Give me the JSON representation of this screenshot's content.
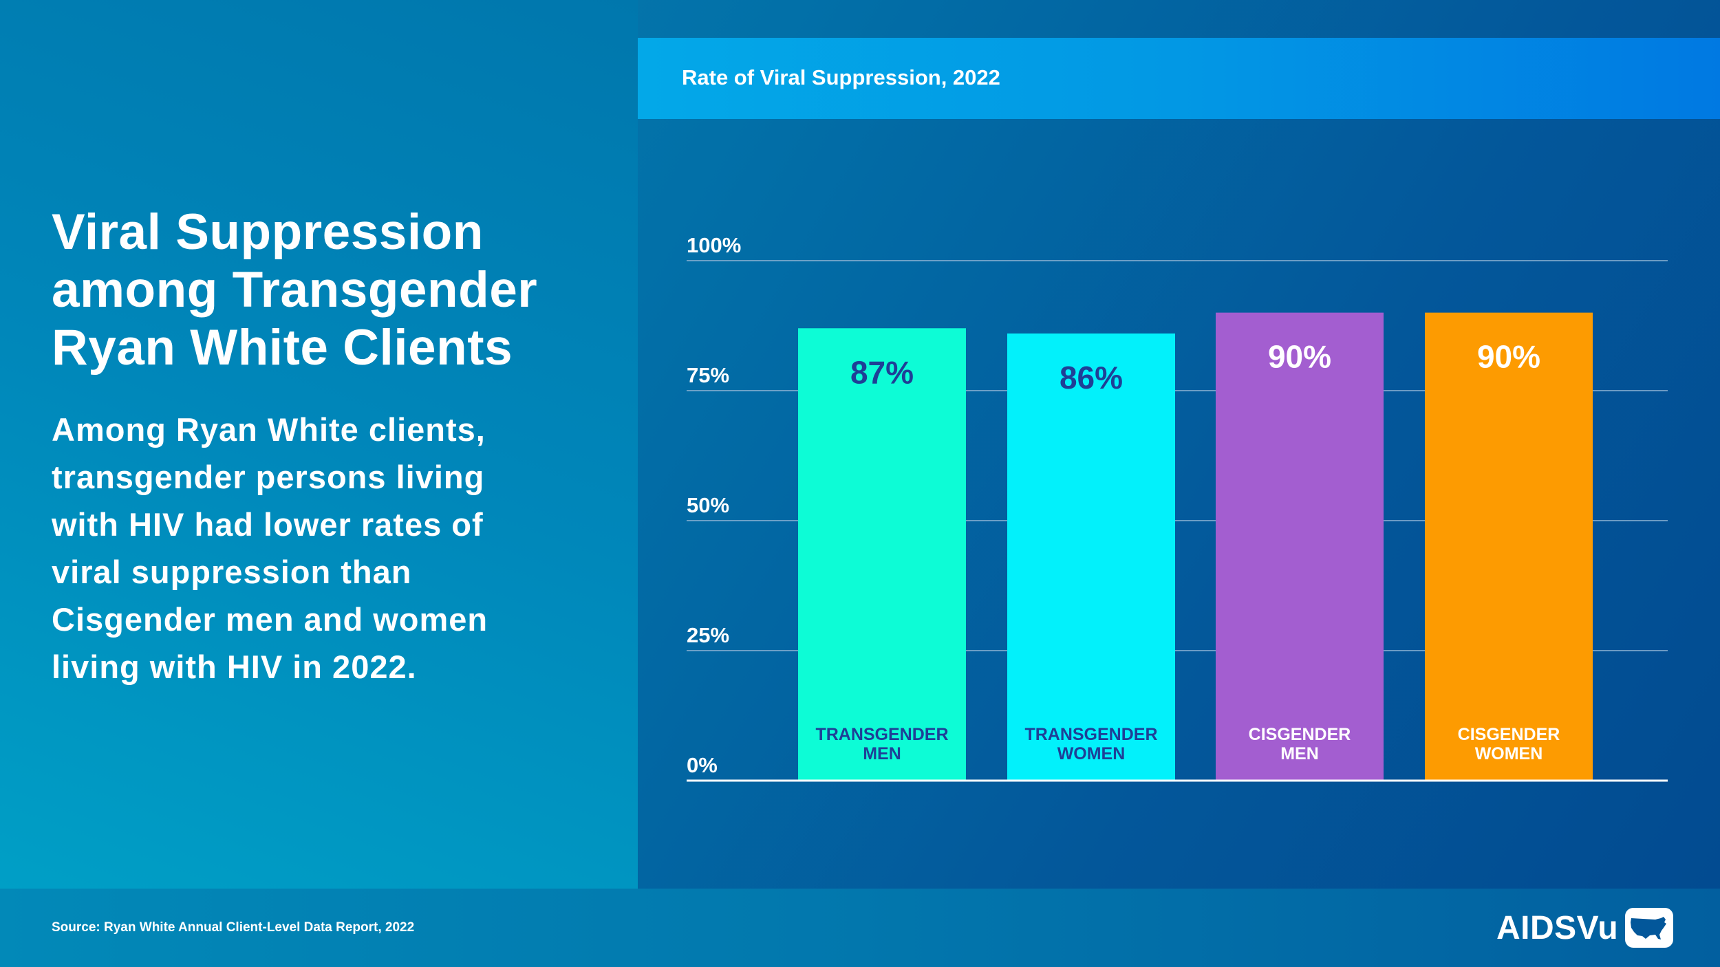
{
  "left": {
    "title": "Viral Suppression among Transgender Ryan White Clients",
    "body": "Among Ryan White clients, transgender persons living with HIV had lower rates of viral suppression than Cisgender men and women living with HIV in 2022."
  },
  "footer": {
    "source": "Source: Ryan White Annual Client-Level Data Report, 2022",
    "logo_text": "AIDSVu",
    "logo_icon": "us-map-icon"
  },
  "chart_data": {
    "type": "bar",
    "title": "Rate of Viral Suppression, 2022",
    "xlabel": "",
    "ylabel": "",
    "categories": [
      "TRANSGENDER MEN",
      "TRANSGENDER WOMEN",
      "CISGENDER MEN",
      "CISGENDER WOMEN"
    ],
    "category_lines": [
      [
        "TRANSGENDER",
        "MEN"
      ],
      [
        "TRANSGENDER",
        "WOMEN"
      ],
      [
        "CISGENDER",
        "MEN"
      ],
      [
        "CISGENDER",
        "WOMEN"
      ]
    ],
    "values": [
      87,
      86,
      90,
      90
    ],
    "value_labels": [
      "87%",
      "86%",
      "90%",
      "90%"
    ],
    "bar_colors": [
      "#0dfcd6",
      "#02f1fb",
      "#a35ed0",
      "#fd9b01"
    ],
    "label_colors": [
      "#1f3f96",
      "#1f3f96",
      "#ffffff",
      "#ffffff"
    ],
    "ylim": [
      0,
      100
    ],
    "yticks": [
      0,
      25,
      50,
      75,
      100
    ],
    "ytick_labels": [
      "0%",
      "25%",
      "50%",
      "75%",
      "100%"
    ],
    "grid": true,
    "legend": "none"
  }
}
